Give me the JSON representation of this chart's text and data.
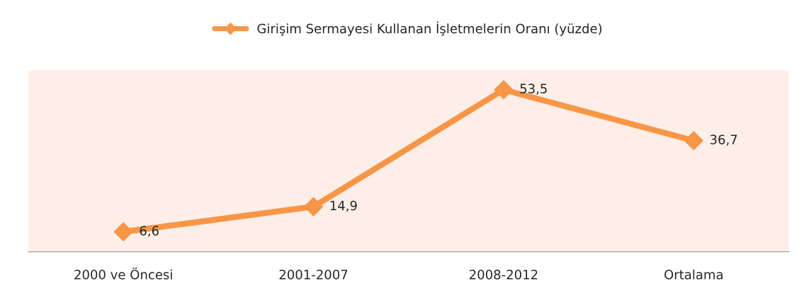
{
  "chart_data": {
    "type": "line",
    "categories": [
      "2000 ve Öncesi",
      "2001-2007",
      "2008-2012",
      "Ortalama"
    ],
    "series": [
      {
        "name": "Girişim Sermayesi Kullanan İşletmelerin Oranı (yüzde)",
        "color": "#f79646",
        "values": [
          6.6,
          14.9,
          53.5,
          36.7
        ],
        "value_labels": [
          "6,6",
          "14,9",
          "53,5",
          "36,7"
        ]
      }
    ],
    "ylim": [
      0,
      60
    ],
    "tick_labels": "x",
    "marker": "diamond",
    "line_style": "solid",
    "legend": "top",
    "grid": false
  }
}
